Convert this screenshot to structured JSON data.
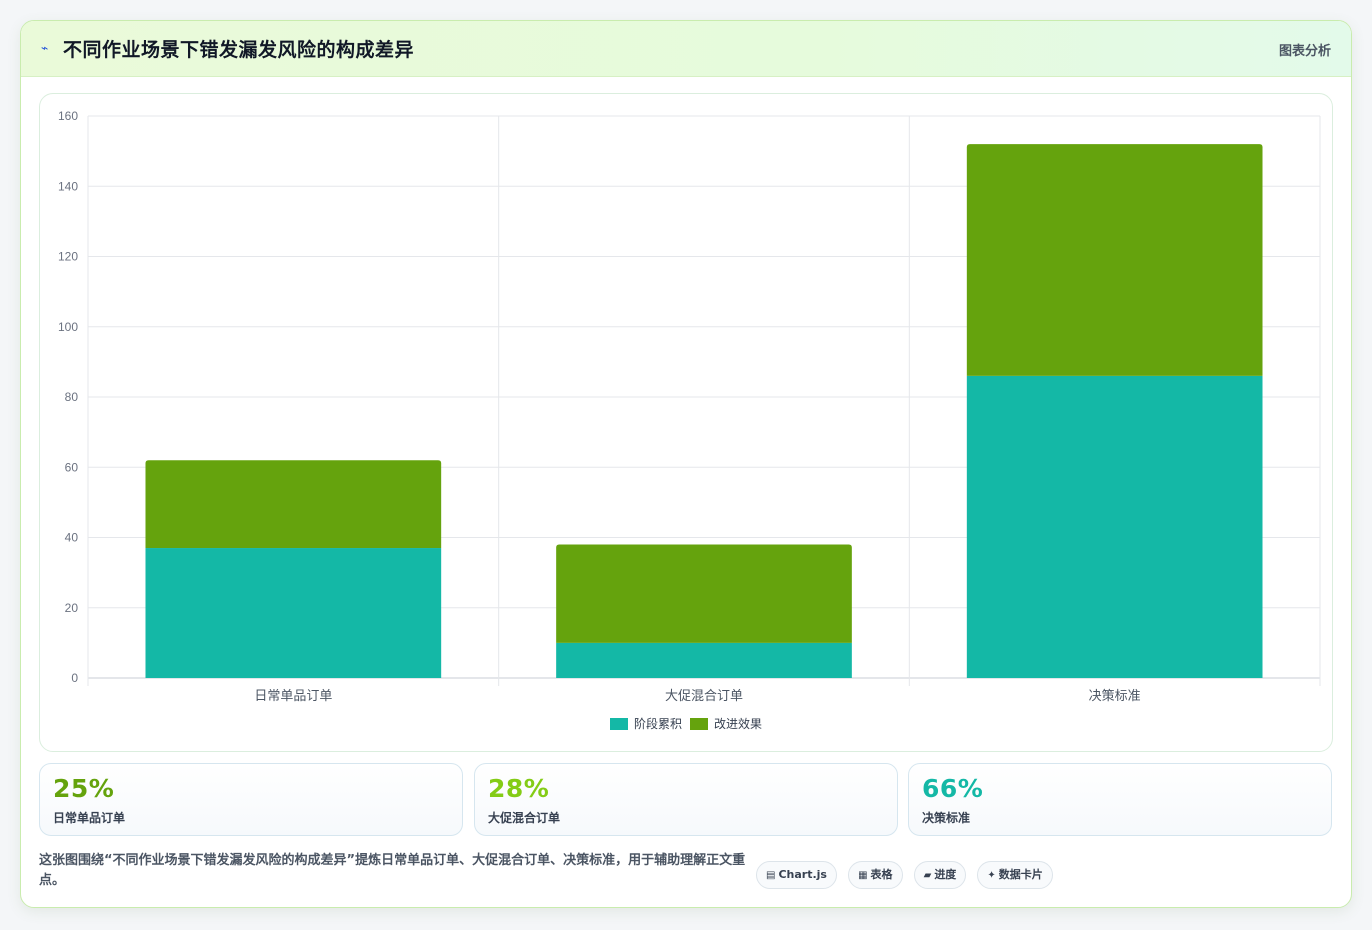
{
  "header": {
    "title": "不同作业场景下错发漏发风险的构成差异",
    "right_label": "图表分析",
    "icon": "trend-icon"
  },
  "chart_data": {
    "type": "bar",
    "stacked": true,
    "categories": [
      "日常单品订单",
      "大促混合订单",
      "决策标准"
    ],
    "series": [
      {
        "name": "阶段累积",
        "color": "#14b8a6",
        "values": [
          37,
          10,
          86
        ]
      },
      {
        "name": "改进效果",
        "color": "#65a30d",
        "values": [
          25,
          28,
          66
        ]
      }
    ],
    "ylim": [
      0,
      160
    ],
    "yticks": [
      0,
      20,
      40,
      60,
      80,
      100,
      120,
      140,
      160
    ],
    "grid": true,
    "legend_position": "bottom-center",
    "xlabel": "",
    "ylabel": ""
  },
  "stats": [
    {
      "value": "25%",
      "label": "日常单品订单",
      "color": "#65a30d"
    },
    {
      "value": "28%",
      "label": "大促混合订单",
      "color": "#84cc16"
    },
    {
      "value": "66%",
      "label": "决策标准",
      "color": "#14b8a6"
    }
  ],
  "description": "这张图围绕“不同作业场景下错发漏发风险的构成差异”提炼日常单品订单、大促混合订单、决策标准，用于辅助理解正文重点。",
  "tags": [
    {
      "icon": "chart-icon",
      "glyph": "▤",
      "label": "Chart.js"
    },
    {
      "icon": "table-icon",
      "glyph": "▦",
      "label": "表格"
    },
    {
      "icon": "progress-icon",
      "glyph": "▰",
      "label": "进度"
    },
    {
      "icon": "sparkle-icon",
      "glyph": "✦",
      "label": "数据卡片"
    }
  ]
}
